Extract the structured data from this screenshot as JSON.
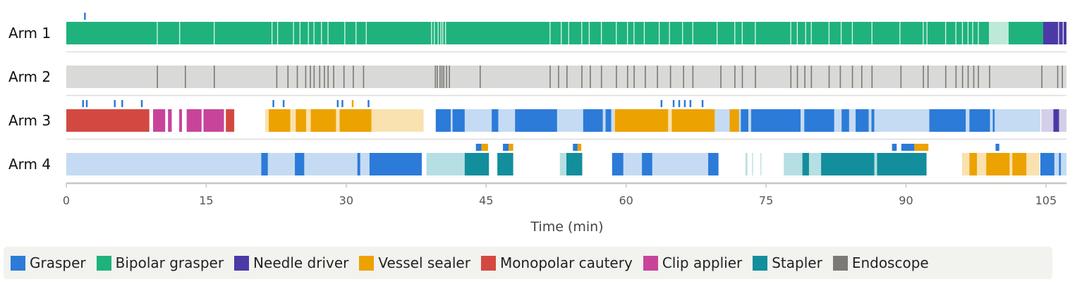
{
  "chart_data": {
    "type": "timeline",
    "xlabel": "Time (min)",
    "xlim": [
      0,
      107.2
    ],
    "xticks": [
      0,
      15,
      30,
      45,
      60,
      75,
      90,
      105
    ],
    "legend_position": "bottom",
    "grid": false,
    "instruments": [
      {
        "name": "Grasper",
        "color": "#2c7bd8",
        "light": "#c5dbf3"
      },
      {
        "name": "Bipolar grasper",
        "color": "#1fb27c",
        "light": "#bde9d8"
      },
      {
        "name": "Needle driver",
        "color": "#4b3aa6",
        "light": "#d3cfe8"
      },
      {
        "name": "Vessel sealer",
        "color": "#eca200",
        "light": "#f9e2b0"
      },
      {
        "name": "Monopolar cautery",
        "color": "#d34941",
        "light": "#f3cac6"
      },
      {
        "name": "Clip applier",
        "color": "#c7449a",
        "light": "#f0c9e2"
      },
      {
        "name": "Stapler",
        "color": "#138e9c",
        "light": "#b5dfe2"
      },
      {
        "name": "Endoscope",
        "color": "#7b7a76",
        "light": "#d9d9d7"
      }
    ],
    "arms": [
      {
        "name": "Arm 1",
        "segments": [
          {
            "start": 0,
            "end": 98.9,
            "instrument": "Bipolar grasper",
            "shade": "dark"
          },
          {
            "start": 98.9,
            "end": 101.0,
            "instrument": "Bipolar grasper",
            "shade": "light"
          },
          {
            "start": 101.0,
            "end": 104.7,
            "instrument": "Bipolar grasper",
            "shade": "dark"
          },
          {
            "start": 104.7,
            "end": 107.2,
            "instrument": "Needle driver",
            "shade": "dark"
          }
        ],
        "gaps": [
          9.7,
          12.1,
          15.8,
          22.0,
          22.6,
          24.3,
          25.0,
          25.9,
          26.5,
          27.3,
          28.0,
          29.8,
          31.0,
          32.1,
          39.1,
          39.4,
          39.8,
          40.1,
          40.3,
          40.6,
          51.8,
          53.0,
          53.8,
          55.2,
          56.0,
          57.3,
          58.9,
          60.1,
          60.8,
          61.9,
          63.5,
          64.6,
          66.0,
          67.1,
          69.7,
          71.6,
          72.4,
          73.8,
          77.6,
          78.3,
          79.2,
          79.8,
          81.7,
          83.0,
          84.2,
          86.3,
          89.3,
          91.8,
          92.2,
          94.2,
          95.3,
          96.0,
          96.6,
          97.1,
          97.7,
          106.3,
          106.8
        ],
        "markers": [
          {
            "t": 1.9,
            "instrument": "Grasper"
          }
        ]
      },
      {
        "name": "Arm 2",
        "segments": [
          {
            "start": 0,
            "end": 107.2,
            "instrument": "Endoscope",
            "shade": "light"
          }
        ],
        "ticks": [
          9.7,
          12.7,
          15.8,
          22.5,
          23.7,
          24.7,
          25.6,
          26.1,
          26.5,
          27.1,
          27.6,
          28.0,
          28.6,
          29.7,
          30.7,
          31.8,
          39.5,
          39.7,
          40.0,
          40.2,
          40.4,
          40.7,
          41.0,
          44.3,
          51.8,
          52.7,
          53.6,
          55.2,
          56.1,
          57.3,
          58.9,
          60.1,
          60.8,
          62.0,
          63.3,
          64.7,
          66.1,
          67.1,
          70.1,
          71.6,
          72.4,
          73.8,
          77.6,
          78.3,
          79.1,
          79.8,
          81.7,
          82.9,
          84.2,
          85.2,
          86.3,
          89.4,
          91.8,
          92.3,
          94.2,
          95.3,
          96.0,
          96.6,
          97.2,
          97.7,
          98.9,
          104.5,
          106.2,
          106.7
        ]
      },
      {
        "name": "Arm 3",
        "segments": [
          {
            "start": 0,
            "end": 8.9,
            "instrument": "Monopolar cautery",
            "shade": "dark"
          },
          {
            "start": 9.3,
            "end": 10.6,
            "instrument": "Clip applier",
            "shade": "dark"
          },
          {
            "start": 10.9,
            "end": 11.3,
            "instrument": "Clip applier",
            "shade": "dark"
          },
          {
            "start": 12.1,
            "end": 12.4,
            "instrument": "Clip applier",
            "shade": "dark"
          },
          {
            "start": 12.9,
            "end": 14.5,
            "instrument": "Clip applier",
            "shade": "dark"
          },
          {
            "start": 14.7,
            "end": 16.9,
            "instrument": "Clip applier",
            "shade": "dark"
          },
          {
            "start": 17.1,
            "end": 18.0,
            "instrument": "Monopolar cautery",
            "shade": "dark"
          },
          {
            "start": 21.3,
            "end": 38.3,
            "instrument": "Vessel sealer",
            "shade": "light"
          },
          {
            "start": 21.7,
            "end": 24.0,
            "instrument": "Vessel sealer",
            "shade": "dark"
          },
          {
            "start": 24.6,
            "end": 25.7,
            "instrument": "Vessel sealer",
            "shade": "dark"
          },
          {
            "start": 26.2,
            "end": 28.9,
            "instrument": "Vessel sealer",
            "shade": "dark"
          },
          {
            "start": 29.3,
            "end": 32.7,
            "instrument": "Vessel sealer",
            "shade": "dark"
          },
          {
            "start": 39.6,
            "end": 104.4,
            "instrument": "Grasper",
            "shade": "light"
          },
          {
            "start": 39.6,
            "end": 41.2,
            "instrument": "Grasper",
            "shade": "dark"
          },
          {
            "start": 41.4,
            "end": 42.7,
            "instrument": "Grasper",
            "shade": "dark"
          },
          {
            "start": 45.6,
            "end": 46.3,
            "instrument": "Grasper",
            "shade": "dark"
          },
          {
            "start": 48.1,
            "end": 52.6,
            "instrument": "Grasper",
            "shade": "dark"
          },
          {
            "start": 55.4,
            "end": 57.5,
            "instrument": "Grasper",
            "shade": "dark"
          },
          {
            "start": 57.8,
            "end": 58.4,
            "instrument": "Grasper",
            "shade": "dark"
          },
          {
            "start": 58.7,
            "end": 69.5,
            "instrument": "Vessel sealer",
            "shade": "light"
          },
          {
            "start": 58.8,
            "end": 64.5,
            "instrument": "Vessel sealer",
            "shade": "dark"
          },
          {
            "start": 64.9,
            "end": 69.5,
            "instrument": "Vessel sealer",
            "shade": "dark"
          },
          {
            "start": 71.1,
            "end": 72.1,
            "instrument": "Vessel sealer",
            "shade": "dark"
          },
          {
            "start": 72.3,
            "end": 73.1,
            "instrument": "Grasper",
            "shade": "dark"
          },
          {
            "start": 73.4,
            "end": 78.7,
            "instrument": "Grasper",
            "shade": "dark"
          },
          {
            "start": 79.1,
            "end": 82.3,
            "instrument": "Grasper",
            "shade": "dark"
          },
          {
            "start": 83.1,
            "end": 83.9,
            "instrument": "Grasper",
            "shade": "dark"
          },
          {
            "start": 84.6,
            "end": 86.0,
            "instrument": "Grasper",
            "shade": "dark"
          },
          {
            "start": 86.3,
            "end": 86.6,
            "instrument": "Grasper",
            "shade": "dark"
          },
          {
            "start": 92.5,
            "end": 96.4,
            "instrument": "Grasper",
            "shade": "dark"
          },
          {
            "start": 96.8,
            "end": 99.0,
            "instrument": "Grasper",
            "shade": "dark"
          },
          {
            "start": 99.3,
            "end": 99.5,
            "instrument": "Grasper",
            "shade": "dark"
          },
          {
            "start": 104.5,
            "end": 107.2,
            "instrument": "Needle driver",
            "shade": "light"
          },
          {
            "start": 105.8,
            "end": 106.4,
            "instrument": "Needle driver",
            "shade": "dark"
          }
        ],
        "markers": [
          {
            "t": 1.7,
            "instrument": "Grasper"
          },
          {
            "t": 2.1,
            "instrument": "Grasper"
          },
          {
            "t": 5.1,
            "instrument": "Grasper"
          },
          {
            "t": 5.9,
            "instrument": "Grasper"
          },
          {
            "t": 8.0,
            "instrument": "Grasper"
          },
          {
            "t": 22.1,
            "instrument": "Grasper"
          },
          {
            "t": 23.2,
            "instrument": "Grasper"
          },
          {
            "t": 29.0,
            "instrument": "Grasper"
          },
          {
            "t": 29.5,
            "instrument": "Grasper"
          },
          {
            "t": 30.6,
            "instrument": "Vessel sealer"
          },
          {
            "t": 32.3,
            "instrument": "Grasper"
          },
          {
            "t": 63.7,
            "instrument": "Grasper"
          },
          {
            "t": 65.0,
            "instrument": "Grasper"
          },
          {
            "t": 65.6,
            "instrument": "Grasper"
          },
          {
            "t": 66.2,
            "instrument": "Grasper"
          },
          {
            "t": 66.8,
            "instrument": "Grasper"
          },
          {
            "t": 68.1,
            "instrument": "Grasper"
          }
        ]
      },
      {
        "name": "Arm 4",
        "segments": [
          {
            "start": 0,
            "end": 38.1,
            "instrument": "Grasper",
            "shade": "light"
          },
          {
            "start": 20.9,
            "end": 21.6,
            "instrument": "Grasper",
            "shade": "dark"
          },
          {
            "start": 24.5,
            "end": 25.5,
            "instrument": "Grasper",
            "shade": "dark"
          },
          {
            "start": 31.2,
            "end": 31.5,
            "instrument": "Grasper",
            "shade": "dark"
          },
          {
            "start": 32.5,
            "end": 38.1,
            "instrument": "Grasper",
            "shade": "dark"
          },
          {
            "start": 38.6,
            "end": 42.7,
            "instrument": "Stapler",
            "shade": "light"
          },
          {
            "start": 42.7,
            "end": 45.3,
            "instrument": "Stapler",
            "shade": "dark"
          },
          {
            "start": 46.2,
            "end": 47.9,
            "instrument": "Stapler",
            "shade": "dark"
          },
          {
            "start": 52.9,
            "end": 53.6,
            "instrument": "Stapler",
            "shade": "light"
          },
          {
            "start": 53.6,
            "end": 55.3,
            "instrument": "Stapler",
            "shade": "dark"
          },
          {
            "start": 58.5,
            "end": 69.9,
            "instrument": "Grasper",
            "shade": "light"
          },
          {
            "start": 58.5,
            "end": 59.7,
            "instrument": "Grasper",
            "shade": "dark"
          },
          {
            "start": 61.7,
            "end": 62.8,
            "instrument": "Grasper",
            "shade": "dark"
          },
          {
            "start": 68.8,
            "end": 69.9,
            "instrument": "Grasper",
            "shade": "dark"
          },
          {
            "start": 72.8,
            "end": 73.0,
            "instrument": "Stapler",
            "shade": "light"
          },
          {
            "start": 73.5,
            "end": 73.6,
            "instrument": "Stapler",
            "shade": "light"
          },
          {
            "start": 74.4,
            "end": 74.5,
            "instrument": "Stapler",
            "shade": "light"
          },
          {
            "start": 76.9,
            "end": 92.2,
            "instrument": "Stapler",
            "shade": "light"
          },
          {
            "start": 78.9,
            "end": 79.6,
            "instrument": "Stapler",
            "shade": "dark"
          },
          {
            "start": 80.9,
            "end": 86.6,
            "instrument": "Stapler",
            "shade": "dark"
          },
          {
            "start": 86.9,
            "end": 92.2,
            "instrument": "Stapler",
            "shade": "dark"
          },
          {
            "start": 96.0,
            "end": 104.3,
            "instrument": "Vessel sealer",
            "shade": "light"
          },
          {
            "start": 96.8,
            "end": 97.6,
            "instrument": "Vessel sealer",
            "shade": "dark"
          },
          {
            "start": 98.6,
            "end": 101.1,
            "instrument": "Vessel sealer",
            "shade": "dark"
          },
          {
            "start": 101.4,
            "end": 102.9,
            "instrument": "Vessel sealer",
            "shade": "dark"
          },
          {
            "start": 104.4,
            "end": 107.2,
            "instrument": "Grasper",
            "shade": "light"
          },
          {
            "start": 104.4,
            "end": 105.9,
            "instrument": "Grasper",
            "shade": "dark"
          },
          {
            "start": 106.4,
            "end": 106.6,
            "instrument": "Grasper",
            "shade": "dark"
          }
        ],
        "markers": [
          {
            "t": 43.9,
            "instrument": "Grasper",
            "len": 0.6
          },
          {
            "t": 44.5,
            "instrument": "Vessel sealer",
            "len": 0.7
          },
          {
            "t": 46.8,
            "instrument": "Grasper",
            "len": 0.6
          },
          {
            "t": 47.4,
            "instrument": "Vessel sealer",
            "len": 0.5
          },
          {
            "t": 54.3,
            "instrument": "Grasper",
            "len": 0.5
          },
          {
            "t": 54.8,
            "instrument": "Vessel sealer",
            "len": 0.4
          },
          {
            "t": 88.5,
            "instrument": "Grasper",
            "len": 0.5
          },
          {
            "t": 89.5,
            "instrument": "Grasper",
            "len": 1.4
          },
          {
            "t": 90.9,
            "instrument": "Vessel sealer",
            "len": 1.5
          },
          {
            "t": 99.6,
            "instrument": "Grasper",
            "len": 0.4
          }
        ]
      }
    ]
  }
}
